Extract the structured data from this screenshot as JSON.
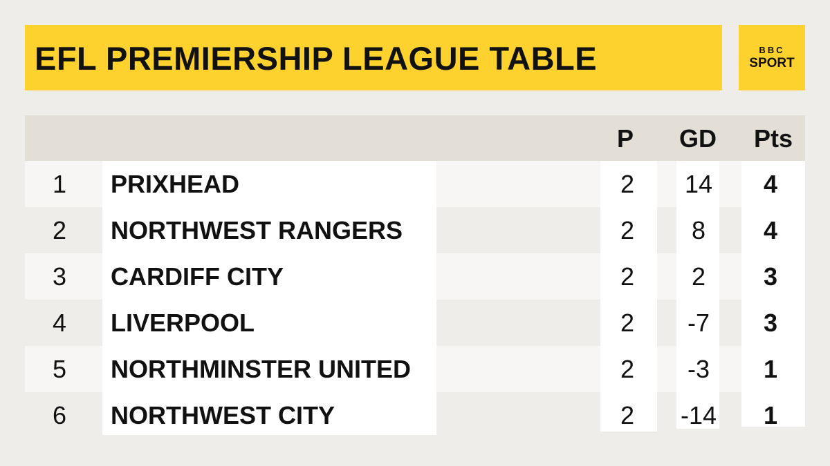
{
  "header": {
    "title": "EFL PREMIERSHIP LEAGUE TABLE",
    "logo": [
      "BBC",
      "SPORT"
    ]
  },
  "table": {
    "columns": [
      "P",
      "GD",
      "Pts"
    ],
    "rows": [
      [
        1,
        "PRIXHEAD",
        2,
        14,
        4
      ],
      [
        2,
        "NORTHWEST RANGERS",
        2,
        8,
        4
      ],
      [
        3,
        "CARDIFF CITY",
        2,
        2,
        3
      ],
      [
        4,
        "LIVERPOOL",
        2,
        -7,
        3
      ],
      [
        5,
        "NORTHMINSTER UNITED",
        2,
        -3,
        1
      ],
      [
        6,
        "NORTHWEST CITY",
        2,
        -14,
        1
      ]
    ]
  }
}
